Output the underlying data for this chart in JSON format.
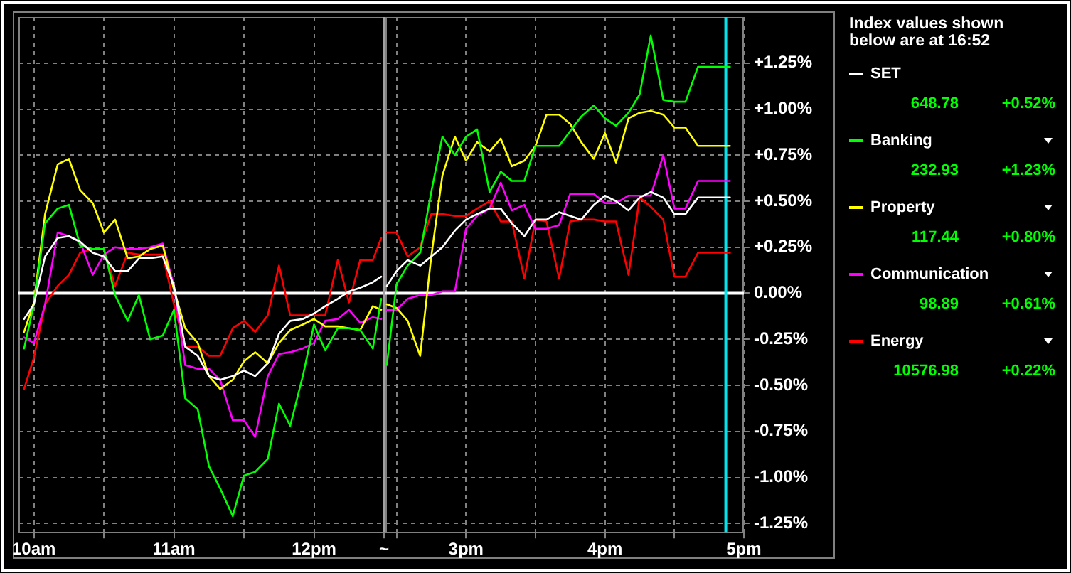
{
  "chart_data": [
    {
      "type": "line",
      "x": [
        9.93,
        10,
        10.08,
        10.17,
        10.25,
        10.33,
        10.42,
        10.5,
        10.58,
        10.67,
        10.75,
        10.83,
        10.92,
        11,
        11.08,
        11.17,
        11.25,
        11.33,
        11.42,
        11.5,
        11.58,
        11.67,
        11.75,
        11.83,
        11.92,
        12,
        12.08,
        12.17,
        12.25,
        12.33,
        12.42,
        12.48
      ],
      "xlim": [
        9.89,
        12.5
      ],
      "xticks": [
        {
          "value": 10,
          "label": "10am"
        },
        {
          "value": 10.5,
          "label": null
        },
        {
          "value": 11,
          "label": "11am"
        },
        {
          "value": 11.5,
          "label": null
        },
        {
          "value": 12,
          "label": "12pm"
        },
        {
          "value": 12.5,
          "label": "~"
        }
      ],
      "ylim": [
        -1.3,
        1.5
      ],
      "yticks": [
        -1.25,
        -1,
        -0.75,
        -0.5,
        -0.25,
        0,
        0.25,
        0.5,
        0.75,
        1,
        1.25
      ],
      "tick_labels": "x",
      "grid": true,
      "ref_lines": [
        {
          "axis": "y",
          "value": 0,
          "color": "#ffffff"
        },
        {
          "axis": "x",
          "value": 12.5,
          "color": "#a0a0a0"
        }
      ],
      "series": [
        {
          "color": "#ffffff",
          "values": [
            -0.14,
            -0.06,
            0.2,
            0.3,
            0.31,
            0.28,
            0.22,
            0.2,
            0.12,
            0.12,
            0.19,
            0.19,
            0.2,
            0.04,
            -0.29,
            -0.34,
            -0.45,
            -0.47,
            -0.45,
            -0.42,
            -0.45,
            -0.38,
            -0.22,
            -0.15,
            -0.14,
            -0.11,
            -0.07,
            -0.03,
            0.01,
            0.03,
            0.06,
            0.09
          ]
        },
        {
          "color": "#00ff00",
          "values": [
            -0.3,
            -0.06,
            0.38,
            0.46,
            0.48,
            0.26,
            0.24,
            0.24,
            -0.01,
            -0.15,
            -0.01,
            -0.25,
            -0.23,
            -0.09,
            -0.57,
            -0.63,
            -0.94,
            -1.06,
            -1.21,
            -0.99,
            -0.97,
            -0.9,
            -0.6,
            -0.72,
            -0.45,
            -0.17,
            -0.31,
            -0.19,
            -0.19,
            -0.2,
            -0.3,
            -0.03
          ]
        },
        {
          "color": "#ffff00",
          "values": [
            -0.21,
            -0.05,
            0.43,
            0.7,
            0.73,
            0.56,
            0.49,
            0.33,
            0.4,
            0.19,
            0.2,
            0.24,
            0.26,
            0.02,
            -0.19,
            -0.27,
            -0.45,
            -0.52,
            -0.47,
            -0.37,
            -0.32,
            -0.38,
            -0.27,
            -0.2,
            -0.17,
            -0.14,
            -0.18,
            -0.18,
            -0.19,
            -0.2,
            -0.07,
            -0.09
          ]
        },
        {
          "color": "#ff00ff",
          "values": [
            -0.24,
            -0.27,
            -0.06,
            0.33,
            0.31,
            0.28,
            0.1,
            0.21,
            0.25,
            0.24,
            0.24,
            0.25,
            0.27,
            0.04,
            -0.39,
            -0.41,
            -0.41,
            -0.47,
            -0.69,
            -0.69,
            -0.78,
            -0.45,
            -0.33,
            -0.32,
            -0.3,
            -0.27,
            -0.15,
            -0.14,
            -0.09,
            -0.16,
            -0.13,
            -0.14
          ]
        },
        {
          "color": "#ff0000",
          "values": [
            -0.52,
            -0.35,
            -0.06,
            0.04,
            0.1,
            0.22,
            0.24,
            0.24,
            0.04,
            0.22,
            0.21,
            0.21,
            0.21,
            -0.06,
            -0.29,
            -0.29,
            -0.34,
            -0.34,
            -0.19,
            -0.15,
            -0.21,
            -0.12,
            0.15,
            -0.12,
            -0.12,
            -0.12,
            -0.12,
            0.18,
            -0.05,
            0.18,
            0.18,
            0.3
          ]
        }
      ]
    },
    {
      "type": "line",
      "x": [
        2.43,
        2.5,
        2.58,
        2.67,
        2.75,
        2.83,
        2.92,
        3,
        3.08,
        3.17,
        3.25,
        3.33,
        3.42,
        3.5,
        3.58,
        3.67,
        3.75,
        3.83,
        3.92,
        4,
        4.08,
        4.17,
        4.25,
        4.33,
        4.42,
        4.5,
        4.58,
        4.67,
        4.75,
        4.83,
        4.9
      ],
      "xlim": [
        2.42,
        5
      ],
      "xticks": [
        {
          "value": 2.5,
          "label": null
        },
        {
          "value": 3,
          "label": "3pm"
        },
        {
          "value": 3.5,
          "label": null
        },
        {
          "value": 4,
          "label": "4pm"
        },
        {
          "value": 4.5,
          "label": null
        },
        {
          "value": 5,
          "label": "5pm"
        }
      ],
      "ylim": [
        -1.3,
        1.5
      ],
      "yticks": [
        {
          "value": -1.25,
          "label": "-1.25%"
        },
        {
          "value": -1,
          "label": "-1.00%"
        },
        {
          "value": -0.75,
          "label": "-0.75%"
        },
        {
          "value": -0.5,
          "label": "-0.50%"
        },
        {
          "value": -0.25,
          "label": "-0.25%"
        },
        {
          "value": 0,
          "label": "0.00%"
        },
        {
          "value": 0.25,
          "label": "+0.25%"
        },
        {
          "value": 0.5,
          "label": "+0.50%"
        },
        {
          "value": 0.75,
          "label": "+0.75%"
        },
        {
          "value": 1,
          "label": "+1.00%"
        },
        {
          "value": 1.25,
          "label": "+1.25%"
        }
      ],
      "grid": true,
      "legend": "right",
      "legend_title": "Index values shown below are at 16:52",
      "annotations": [
        "648.78",
        "+0.52%",
        "232.93",
        "+1.23%",
        "117.44",
        "+0.80%",
        "98.89",
        "+0.61%",
        "10576.98",
        "+0.22%"
      ],
      "ref_lines": [
        {
          "axis": "y",
          "value": 0,
          "color": "#ffffff"
        },
        {
          "axis": "x",
          "value": 4.87,
          "color": "#00e5ee"
        }
      ],
      "series": [
        {
          "name": "SET",
          "color": "#ffffff",
          "values": [
            0.04,
            0.12,
            0.18,
            0.15,
            0.2,
            0.25,
            0.34,
            0.4,
            0.43,
            0.46,
            0.46,
            0.38,
            0.31,
            0.4,
            0.4,
            0.44,
            0.42,
            0.4,
            0.48,
            0.53,
            0.5,
            0.45,
            0.52,
            0.55,
            0.52,
            0.43,
            0.43,
            0.52,
            0.52,
            0.52,
            0.52
          ]
        },
        {
          "name": "Banking",
          "color": "#00ff00",
          "values": [
            -0.39,
            0.05,
            0.15,
            0.22,
            0.55,
            0.85,
            0.75,
            0.85,
            0.89,
            0.55,
            0.66,
            0.61,
            0.61,
            0.8,
            0.8,
            0.8,
            0.88,
            0.96,
            1.02,
            0.95,
            0.91,
            0.98,
            1.08,
            1.4,
            1.05,
            1.04,
            1.04,
            1.23,
            1.23,
            1.23,
            1.23
          ]
        },
        {
          "name": "Property",
          "color": "#ffff00",
          "values": [
            -0.06,
            -0.08,
            -0.15,
            -0.34,
            0.2,
            0.64,
            0.85,
            0.72,
            0.82,
            0.77,
            0.84,
            0.69,
            0.72,
            0.8,
            0.97,
            0.97,
            0.92,
            0.82,
            0.73,
            0.87,
            0.71,
            0.95,
            0.98,
            0.99,
            0.97,
            0.9,
            0.9,
            0.8,
            0.8,
            0.8,
            0.8
          ]
        },
        {
          "name": "Communication",
          "color": "#ff00ff",
          "values": [
            -0.09,
            -0.09,
            -0.03,
            -0.01,
            -0.01,
            0.01,
            0.01,
            0.35,
            0.42,
            0.46,
            0.6,
            0.45,
            0.48,
            0.35,
            0.35,
            0.37,
            0.54,
            0.54,
            0.54,
            0.49,
            0.49,
            0.53,
            0.53,
            0.53,
            0.75,
            0.46,
            0.46,
            0.61,
            0.61,
            0.61,
            0.61
          ]
        },
        {
          "name": "Energy",
          "color": "#ff0000",
          "values": [
            0.33,
            0.33,
            0.2,
            0.25,
            0.43,
            0.43,
            0.42,
            0.42,
            0.46,
            0.5,
            0.39,
            0.39,
            0.08,
            0.4,
            0.39,
            0.08,
            0.39,
            0.4,
            0.4,
            0.39,
            0.39,
            0.1,
            0.52,
            0.47,
            0.4,
            0.09,
            0.09,
            0.22,
            0.22,
            0.22,
            0.22
          ]
        }
      ]
    }
  ]
}
